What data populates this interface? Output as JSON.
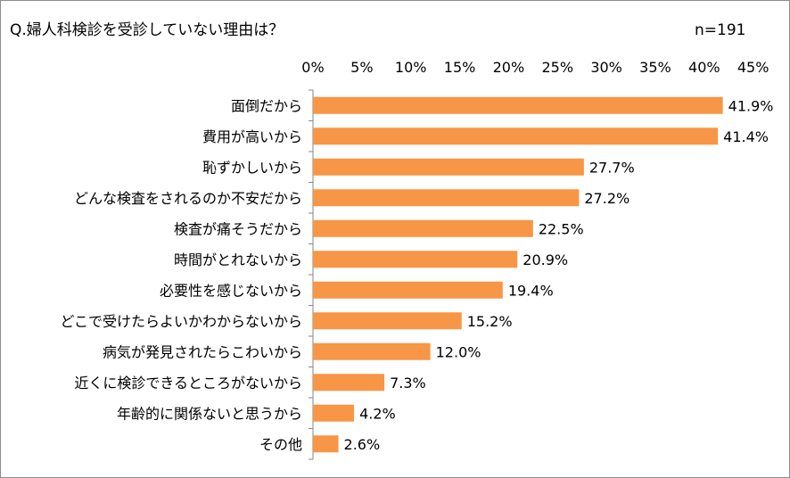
{
  "chart_data": {
    "type": "bar",
    "orientation": "horizontal",
    "title": "Q.婦人科検診を受診していない理由は？",
    "note": "n=191",
    "xlim": [
      0,
      45
    ],
    "xticks": [
      "0%",
      "5%",
      "10%",
      "15%",
      "20%",
      "25%",
      "30%",
      "35%",
      "40%",
      "45%"
    ],
    "xtick_values": [
      0,
      5,
      10,
      15,
      20,
      25,
      30,
      35,
      40,
      45
    ],
    "grid": false,
    "bar_color": "#F79646",
    "categories": [
      "面倒だから",
      "費用が高いから",
      "恥ずかしいから",
      "どんな検査をされるのか不安だから",
      "検査が痛そうだから",
      "時間がとれないから",
      "必要性を感じないから",
      "どこで受けたらよいかわからないから",
      "病気が発見されたらこわいから",
      "近くに検診できるところがないから",
      "年齢的に関係ないと思うから",
      "その他"
    ],
    "values": [
      41.9,
      41.4,
      27.7,
      27.2,
      22.5,
      20.9,
      19.4,
      15.2,
      12.0,
      7.3,
      4.2,
      2.6
    ],
    "data_labels": [
      "41.9%",
      "41.4%",
      "27.7%",
      "27.2%",
      "22.5%",
      "20.9%",
      "19.4%",
      "15.2%",
      "12.0%",
      "7.3%",
      "4.2%",
      "2.6%"
    ]
  }
}
